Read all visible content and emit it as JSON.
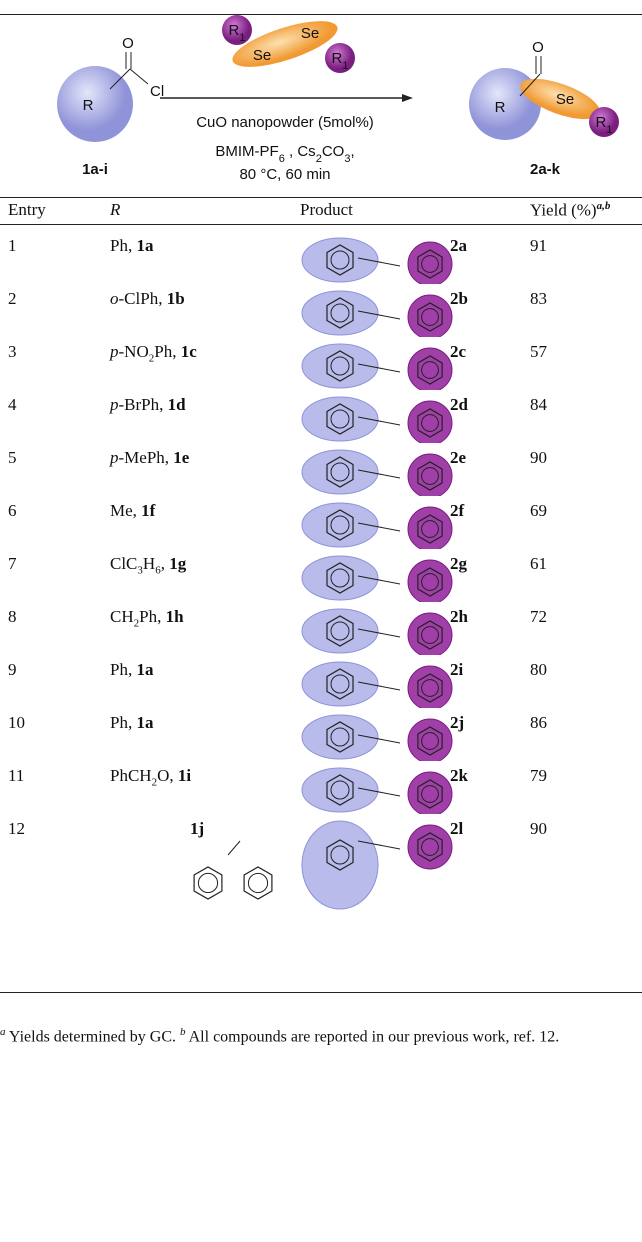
{
  "scheme": {
    "reactant": {
      "r": "R",
      "o": "O",
      "x": "Cl",
      "id": "1a-i"
    },
    "reagent": {
      "r1_left": "R1",
      "se_left": "Se",
      "se_right": "Se",
      "r1_right": "R1"
    },
    "conditions": [
      "CuO nanopowder (5mol%)",
      "BMIM-PF6 , Cs2CO3,",
      "80 °C, 60 min"
    ],
    "product": {
      "r": "R",
      "o": "O",
      "se": "Se",
      "r1": "R1",
      "id": "2a-k"
    }
  },
  "table": {
    "columns": [
      "Entry",
      "R",
      "Product",
      "Yield (%)"
    ],
    "yield_marks": "a,b",
    "rows": [
      {
        "entry": 1,
        "r": "Ph",
        "r_id": "1a",
        "product": "2a",
        "yield": 91
      },
      {
        "entry": 2,
        "r": "o-ClPh",
        "r_id": "1b",
        "product": "2b",
        "yield": 83
      },
      {
        "entry": 3,
        "r": "p-NO2Ph",
        "r_id": "1c",
        "product": "2c",
        "yield": 57
      },
      {
        "entry": 4,
        "r": "p-BrPh",
        "r_id": "1d",
        "product": "2d",
        "yield": 84
      },
      {
        "entry": 5,
        "r": "p-MePh",
        "r_id": "1e",
        "product": "2e",
        "yield": 90
      },
      {
        "entry": 6,
        "r": "Me",
        "r_id": "1f",
        "product": "2f",
        "yield": 69
      },
      {
        "entry": 7,
        "r": "ClC3H6",
        "r_id": "1g",
        "product": "2g",
        "yield": 61
      },
      {
        "entry": 8,
        "r": "CH2Ph",
        "r_id": "1h",
        "product": "2h",
        "yield": 72
      },
      {
        "entry": 9,
        "r": "Ph",
        "r_id": "1a",
        "product": "2i",
        "yield": 80
      },
      {
        "entry": 10,
        "r": "Ph",
        "r_id": "1a",
        "product": "2j",
        "yield": 86
      },
      {
        "entry": 11,
        "r": "PhCH2O",
        "r_id": "1i",
        "product": "2k",
        "yield": 79
      },
      {
        "entry": 12,
        "r_id": "1j",
        "product": "2l",
        "yield": 90
      }
    ]
  },
  "footnotes": [
    {
      "mark": "a",
      "text": "Yields determined by GC."
    },
    {
      "mark": "b",
      "text": "All compounds are reported in our previous work, ref. 12."
    }
  ]
}
